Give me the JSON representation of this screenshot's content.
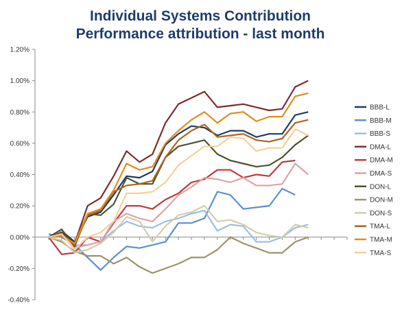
{
  "chart_data": {
    "type": "line",
    "title": "Individual Systems Contribution",
    "subtitle": "Performance attribution - last month",
    "ylim": [
      -0.4,
      1.2
    ],
    "yticks": [
      "1.20%",
      "1.00%",
      "0.80%",
      "0.60%",
      "0.40%",
      "0.20%",
      "0.00%",
      "-0.20%",
      "-0.40%"
    ],
    "ytick_values": [
      1.2,
      1.0,
      0.8,
      0.6,
      0.4,
      0.2,
      0.0,
      -0.2,
      -0.4
    ],
    "x": [
      1,
      2,
      3,
      4,
      5,
      6,
      7,
      8,
      9,
      10,
      11,
      12,
      13,
      14,
      15,
      16,
      17,
      18,
      19,
      20,
      21,
      22,
      23,
      24
    ],
    "grid": false,
    "legend_position": "right",
    "series": [
      {
        "name": "BBB-L",
        "color": "#1f3a64",
        "values": [
          0.0,
          0.04,
          -0.03,
          0.13,
          0.16,
          0.27,
          0.39,
          0.38,
          0.42,
          0.59,
          0.66,
          0.71,
          0.7,
          0.65,
          0.68,
          0.68,
          0.64,
          0.66,
          0.66,
          0.78,
          0.8,
          null,
          null,
          null
        ]
      },
      {
        "name": "BBB-M",
        "color": "#5b8fd6",
        "values": [
          0.02,
          0.0,
          -0.05,
          -0.13,
          -0.21,
          -0.13,
          -0.06,
          -0.07,
          -0.05,
          -0.03,
          0.09,
          0.09,
          0.12,
          0.29,
          0.27,
          0.18,
          0.19,
          0.2,
          0.31,
          0.27,
          null,
          null,
          null,
          null
        ]
      },
      {
        "name": "BBB-S",
        "color": "#9dbde6",
        "values": [
          0.0,
          0.04,
          -0.05,
          -0.05,
          -0.03,
          0.04,
          0.1,
          0.07,
          0.06,
          0.1,
          0.12,
          0.15,
          0.17,
          0.04,
          0.08,
          0.07,
          -0.03,
          -0.03,
          0.0,
          0.06,
          0.08,
          null,
          null,
          null
        ]
      },
      {
        "name": "DMA-L",
        "color": "#7b2c2c",
        "values": [
          0.0,
          0.03,
          -0.04,
          0.2,
          0.25,
          0.39,
          0.55,
          0.48,
          0.53,
          0.73,
          0.85,
          0.89,
          0.93,
          0.83,
          0.84,
          0.85,
          0.83,
          0.81,
          0.82,
          0.96,
          1.0,
          null,
          null,
          null
        ]
      },
      {
        "name": "DMA-M",
        "color": "#c0393f",
        "values": [
          0.0,
          -0.11,
          -0.1,
          0.0,
          -0.03,
          0.09,
          0.2,
          0.2,
          0.18,
          0.24,
          0.28,
          0.35,
          0.37,
          0.43,
          0.43,
          0.38,
          0.4,
          0.39,
          0.48,
          0.49,
          null,
          null,
          null,
          null
        ]
      },
      {
        "name": "DMA-S",
        "color": "#e0a2a6",
        "values": [
          0.0,
          0.02,
          -0.07,
          -0.05,
          -0.03,
          0.1,
          0.15,
          0.12,
          0.1,
          0.18,
          0.27,
          0.32,
          0.38,
          0.37,
          0.35,
          0.38,
          0.33,
          0.33,
          0.34,
          0.47,
          0.4,
          null,
          null,
          null
        ]
      },
      {
        "name": "DON-L",
        "color": "#4d5230",
        "values": [
          0.0,
          0.05,
          -0.06,
          0.15,
          0.14,
          0.21,
          0.38,
          0.34,
          0.34,
          0.51,
          0.58,
          0.6,
          0.62,
          0.53,
          0.49,
          0.47,
          0.45,
          0.46,
          0.51,
          0.59,
          0.65,
          null,
          null,
          null
        ]
      },
      {
        "name": "DON-M",
        "color": "#9b9466",
        "values": [
          0.0,
          -0.03,
          -0.09,
          -0.12,
          -0.12,
          -0.17,
          -0.13,
          -0.19,
          -0.23,
          -0.2,
          -0.17,
          -0.13,
          -0.13,
          -0.08,
          0.0,
          -0.04,
          -0.07,
          -0.1,
          -0.1,
          -0.03,
          0.0,
          null,
          null,
          null
        ]
      },
      {
        "name": "DON-S",
        "color": "#d2ceaa",
        "values": [
          0.0,
          -0.02,
          -0.1,
          -0.08,
          -0.04,
          0.03,
          0.13,
          0.1,
          -0.03,
          0.07,
          0.14,
          0.16,
          0.2,
          0.1,
          0.11,
          0.08,
          0.03,
          0.01,
          0.0,
          0.08,
          0.06,
          null,
          null,
          null
        ]
      },
      {
        "name": "TMA-L",
        "color": "#b1621b",
        "values": [
          0.0,
          0.02,
          -0.05,
          0.14,
          0.17,
          0.29,
          0.33,
          0.34,
          0.36,
          0.51,
          0.62,
          0.68,
          0.72,
          0.64,
          0.65,
          0.66,
          0.62,
          0.61,
          0.63,
          0.73,
          0.75,
          null,
          null,
          null
        ]
      },
      {
        "name": "TMA-M",
        "color": "#e58a1e",
        "values": [
          0.0,
          0.01,
          -0.04,
          0.15,
          0.18,
          0.3,
          0.47,
          0.43,
          0.45,
          0.6,
          0.68,
          0.75,
          0.8,
          0.73,
          0.79,
          0.8,
          0.74,
          0.77,
          0.77,
          0.9,
          0.92,
          null,
          null,
          null
        ]
      },
      {
        "name": "TMA-S",
        "color": "#f6cf96",
        "values": [
          0.0,
          0.02,
          -0.08,
          0.0,
          0.03,
          0.1,
          0.28,
          0.28,
          0.29,
          0.35,
          0.46,
          0.52,
          0.58,
          0.58,
          0.64,
          0.63,
          0.55,
          0.57,
          0.57,
          0.69,
          0.65,
          null,
          null,
          null
        ]
      }
    ]
  }
}
